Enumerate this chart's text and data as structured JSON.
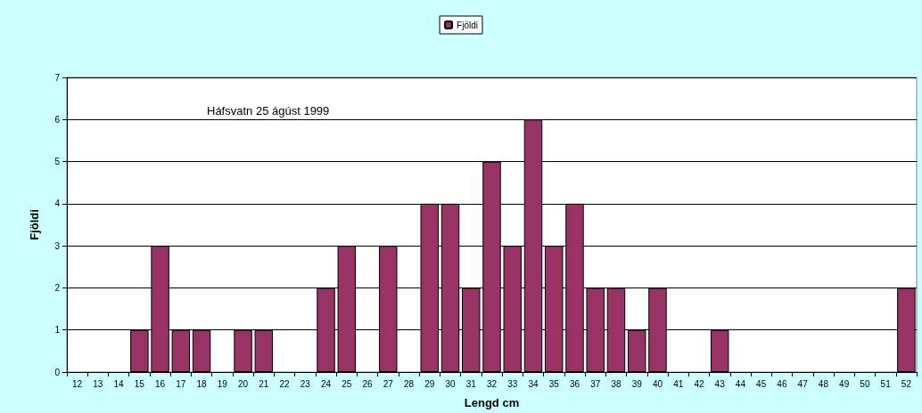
{
  "chart_data": {
    "type": "bar",
    "xlabel": "Lengd cm",
    "ylabel": "Fjöldi",
    "annotations": [
      "Háfsvatn 25 ágúst 1999"
    ],
    "categories": [
      "12",
      "13",
      "14",
      "15",
      "16",
      "17",
      "18",
      "19",
      "20",
      "21",
      "22",
      "23",
      "24",
      "25",
      "26",
      "27",
      "28",
      "29",
      "30",
      "31",
      "32",
      "33",
      "34",
      "35",
      "36",
      "37",
      "38",
      "39",
      "40",
      "41",
      "42",
      "43",
      "44",
      "45",
      "46",
      "47",
      "48",
      "49",
      "50",
      "51",
      "52"
    ],
    "series": [
      {
        "name": "Fjöldi",
        "color": "#993366",
        "values": [
          0,
          0,
          0,
          1,
          3,
          1,
          1,
          0,
          1,
          1,
          0,
          0,
          2,
          3,
          0,
          3,
          0,
          4,
          4,
          2,
          5,
          3,
          6,
          3,
          4,
          2,
          2,
          1,
          2,
          0,
          0,
          1,
          0,
          0,
          0,
          0,
          0,
          0,
          0,
          0,
          2
        ]
      }
    ],
    "ylim": [
      0,
      7
    ],
    "yticks": [
      0,
      1,
      2,
      3,
      4,
      5,
      6,
      7
    ],
    "grid": "y",
    "legend": "top"
  }
}
